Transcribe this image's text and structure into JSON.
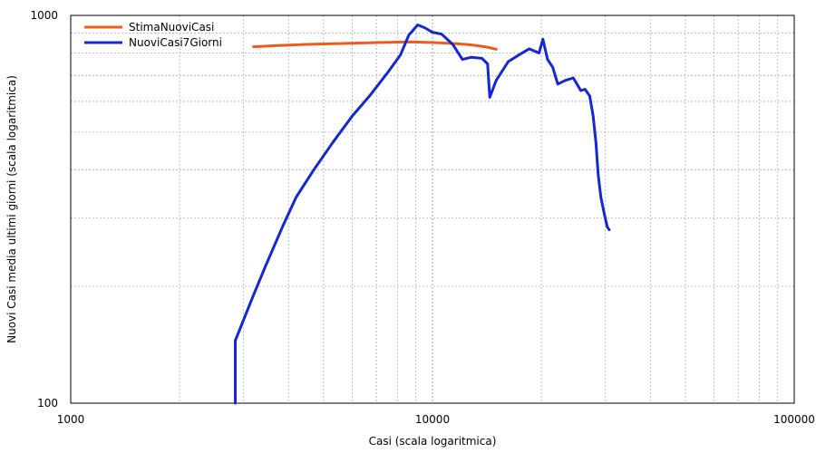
{
  "chart_data": {
    "type": "line",
    "title": "",
    "xlabel": "Casi (scala logaritmica)",
    "ylabel": "Nuovi Casi media ultimi giorni (scala logaritmica)",
    "xscale": "log",
    "yscale": "log",
    "xlim": [
      1000,
      100000
    ],
    "ylim": [
      100,
      1000
    ],
    "xticks": [
      1000,
      10000,
      100000
    ],
    "xtick_labels": [
      "1000",
      "10000",
      "100000"
    ],
    "yticks": [
      100,
      1000
    ],
    "ytick_labels": [
      "100",
      "1000"
    ],
    "grid": true,
    "legend_position": "top-left",
    "series": [
      {
        "name": "StimaNuoviCasi",
        "color": "#f05a1a",
        "x": [
          3200,
          3800,
          4500,
          5300,
          6100,
          7000,
          7800,
          8700,
          9600,
          10500,
          11500,
          12700,
          14000,
          15000
        ],
        "y": [
          830,
          837,
          842,
          845,
          848,
          851,
          853,
          854,
          852,
          850,
          846,
          840,
          830,
          818
        ]
      },
      {
        "name": "NuoviCasi7Giorni",
        "color": "#1428d2",
        "x": [
          2850,
          2850,
          3200,
          3450,
          3850,
          4200,
          4700,
          5300,
          6000,
          6700,
          7500,
          8150,
          8600,
          9100,
          9500,
          10000,
          10600,
          11400,
          12100,
          12800,
          13700,
          14200,
          14400,
          15000,
          16200,
          17300,
          18500,
          19700,
          20200,
          20800,
          21500,
          22200,
          23300,
          24500,
          25700,
          26400,
          27200,
          27800,
          28300,
          28700,
          29200,
          29800,
          30400,
          30800
        ],
        "y": [
          100,
          145,
          190,
          225,
          285,
          340,
          400,
          470,
          550,
          620,
          710,
          790,
          890,
          945,
          930,
          905,
          895,
          840,
          770,
          780,
          775,
          750,
          615,
          680,
          760,
          790,
          820,
          800,
          868,
          770,
          735,
          665,
          680,
          690,
          640,
          645,
          620,
          550,
          470,
          390,
          340,
          310,
          285,
          280
        ]
      }
    ]
  }
}
